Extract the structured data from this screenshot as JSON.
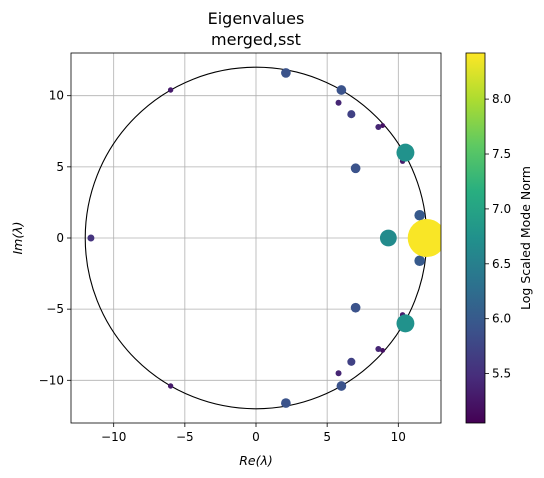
{
  "chart_data": {
    "type": "scatter",
    "title": [
      "Eigenvalues",
      "merged,sst"
    ],
    "xlabel": "Re(λ)",
    "ylabel": "Im(λ)",
    "xlim": [
      -13,
      13
    ],
    "ylim": [
      -13,
      13
    ],
    "xticks": [
      -10,
      -5,
      0,
      5,
      10
    ],
    "yticks": [
      -10,
      -5,
      0,
      5,
      10
    ],
    "xtick_labels": [
      "−10",
      "−5",
      "0",
      "5",
      "10"
    ],
    "ytick_labels": [
      "−10",
      "−5",
      "0",
      "5",
      "10"
    ],
    "grid": true,
    "unit_circle_radius": 12,
    "colorbar": {
      "label": "Log Scaled Mode Norm",
      "range": [
        5.05,
        8.42
      ],
      "ticks": [
        5.5,
        6.0,
        6.5,
        7.0,
        7.5,
        8.0
      ],
      "tick_labels": [
        "5.5",
        "6.0",
        "6.5",
        "7.0",
        "7.5",
        "8.0"
      ],
      "colormap": "viridis"
    },
    "points": [
      {
        "x": -11.6,
        "y": 0.0,
        "norm": 5.55
      },
      {
        "x": -6.0,
        "y": 10.4,
        "norm": 5.3
      },
      {
        "x": -6.0,
        "y": -10.4,
        "norm": 5.3
      },
      {
        "x": 2.1,
        "y": 11.6,
        "norm": 5.9
      },
      {
        "x": 2.1,
        "y": -11.6,
        "norm": 5.9
      },
      {
        "x": 6.0,
        "y": 10.4,
        "norm": 5.9
      },
      {
        "x": 6.0,
        "y": -10.4,
        "norm": 5.9
      },
      {
        "x": 5.8,
        "y": 9.5,
        "norm": 5.4
      },
      {
        "x": 5.8,
        "y": -9.5,
        "norm": 5.4
      },
      {
        "x": 6.7,
        "y": 8.7,
        "norm": 5.7
      },
      {
        "x": 6.7,
        "y": -8.7,
        "norm": 5.7
      },
      {
        "x": 8.6,
        "y": 7.8,
        "norm": 5.4
      },
      {
        "x": 8.6,
        "y": -7.8,
        "norm": 5.4
      },
      {
        "x": 8.9,
        "y": 7.9,
        "norm": 5.2
      },
      {
        "x": 8.9,
        "y": -7.9,
        "norm": 5.2
      },
      {
        "x": 7.0,
        "y": 4.9,
        "norm": 5.9
      },
      {
        "x": 7.0,
        "y": -4.9,
        "norm": 5.9
      },
      {
        "x": 10.3,
        "y": 6.1,
        "norm": 6.0
      },
      {
        "x": 10.3,
        "y": -6.1,
        "norm": 6.0
      },
      {
        "x": 10.5,
        "y": 6.0,
        "norm": 6.75
      },
      {
        "x": 10.5,
        "y": -6.0,
        "norm": 6.75
      },
      {
        "x": 10.3,
        "y": 5.4,
        "norm": 5.3
      },
      {
        "x": 10.3,
        "y": -5.4,
        "norm": 5.3
      },
      {
        "x": 9.3,
        "y": 0.0,
        "norm": 6.65
      },
      {
        "x": 11.5,
        "y": 1.6,
        "norm": 6.0
      },
      {
        "x": 11.5,
        "y": -1.6,
        "norm": 6.0
      },
      {
        "x": 11.9,
        "y": 1.1,
        "norm": 5.5
      },
      {
        "x": 11.9,
        "y": -1.1,
        "norm": 5.5
      },
      {
        "x": 12.0,
        "y": 0.0,
        "norm": 8.4
      },
      {
        "x": 11.4,
        "y": 0.0,
        "norm": 6.8
      },
      {
        "x": 11.9,
        "y": 0.6,
        "norm": 6.1
      },
      {
        "x": 11.9,
        "y": -0.6,
        "norm": 6.1
      }
    ]
  }
}
